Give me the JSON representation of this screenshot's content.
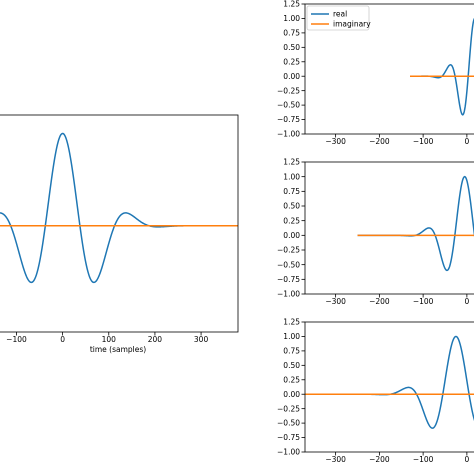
{
  "colors": {
    "real": "#1f77b4",
    "imaginary": "#ff7f0e",
    "axes": "#000000",
    "background": "#ffffff"
  },
  "chart_data": [
    {
      "type": "line",
      "name": "main",
      "xlabel": "time (samples)",
      "ylabel": "",
      "xlim": [
        -140,
        380
      ],
      "ylim": [
        -1.15,
        1.2
      ],
      "xticks": [
        -100,
        0,
        100,
        200,
        300
      ],
      "xtick_labels": [
        "−100",
        "0",
        "100",
        "200",
        "300"
      ],
      "yticks": [],
      "grid": false,
      "series": [
        {
          "name": "real",
          "color": "#1f77b4",
          "wavelet": {
            "amp": 1.0,
            "center": 0,
            "sigma": 72,
            "period": 150,
            "support": [
              -300,
              300
            ]
          }
        },
        {
          "name": "imaginary",
          "color": "#ff7f0e",
          "constant": 0
        }
      ]
    },
    {
      "type": "line",
      "name": "top-right",
      "xlabel": "",
      "xlim": [
        -370,
        30
      ],
      "ylim": [
        -1.0,
        1.25
      ],
      "xticks": [
        -300,
        -200,
        -100,
        0
      ],
      "xtick_labels": [
        "−300",
        "−200",
        "−100",
        "0"
      ],
      "yticks": [
        -1.0,
        -0.75,
        -0.5,
        -0.25,
        0.0,
        0.25,
        0.5,
        0.75,
        1.0,
        1.25
      ],
      "ytick_labels": [
        "−1.00",
        "−0.75",
        "−0.50",
        "−0.25",
        "0.00",
        "0.25",
        "0.50",
        "0.75",
        "1.00",
        "1.25"
      ],
      "grid": false,
      "legend": {
        "placement": "top-left",
        "entries": [
          "real",
          "imaginary"
        ]
      },
      "series": [
        {
          "name": "real",
          "color": "#1f77b4",
          "wavelet": {
            "amp": 1.0,
            "center": 18,
            "sigma": 32,
            "period": 60,
            "support": [
              -130,
              30
            ]
          }
        },
        {
          "name": "imaginary",
          "color": "#ff7f0e",
          "constant": 0,
          "x_start": -130
        }
      ]
    },
    {
      "type": "line",
      "name": "middle-right",
      "xlabel": "",
      "xlim": [
        -370,
        30
      ],
      "ylim": [
        -1.0,
        1.25
      ],
      "xticks": [
        -300,
        -200,
        -100,
        0
      ],
      "xtick_labels": [
        "−300",
        "−200",
        "−100",
        "0"
      ],
      "yticks": [
        -1.0,
        -0.75,
        -0.5,
        -0.25,
        0.0,
        0.25,
        0.5,
        0.75,
        1.0,
        1.25
      ],
      "ytick_labels": [
        "−1.00",
        "−0.75",
        "−0.50",
        "−0.25",
        "0.00",
        "0.25",
        "0.50",
        "0.75",
        "1.00",
        "1.25"
      ],
      "grid": false,
      "series": [
        {
          "name": "real",
          "color": "#1f77b4",
          "wavelet": {
            "amp": 1.0,
            "center": -5,
            "sigma": 42,
            "period": 90,
            "support": [
              -250,
              30
            ]
          }
        },
        {
          "name": "imaginary",
          "color": "#ff7f0e",
          "constant": 0,
          "x_start": -250
        }
      ]
    },
    {
      "type": "line",
      "name": "bottom-right",
      "xlabel": "",
      "xlim": [
        -370,
        30
      ],
      "ylim": [
        -1.0,
        1.25
      ],
      "xticks": [
        -300,
        -200,
        -100,
        0
      ],
      "xtick_labels": [
        "−300",
        "−200",
        "−100",
        "0"
      ],
      "yticks": [
        -1.0,
        -0.75,
        -0.5,
        -0.25,
        0.0,
        0.25,
        0.5,
        0.75,
        1.0,
        1.25
      ],
      "ytick_labels": [
        "−1.00",
        "−0.75",
        "−0.50",
        "−0.25",
        "0.00",
        "0.25",
        "0.50",
        "0.75",
        "1.00",
        "1.25"
      ],
      "grid": false,
      "series": [
        {
          "name": "real",
          "color": "#1f77b4",
          "wavelet": {
            "amp": 1.0,
            "center": -25,
            "sigma": 55,
            "period": 120,
            "support": [
              -370,
              30
            ]
          }
        },
        {
          "name": "imaginary",
          "color": "#ff7f0e",
          "constant": 0,
          "x_start": -370
        }
      ]
    }
  ],
  "legend": {
    "real_label": "real",
    "imaginary_label": "imaginary"
  }
}
